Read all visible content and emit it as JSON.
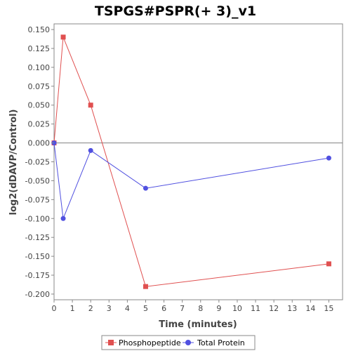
{
  "chart_data": {
    "type": "line",
    "title": "TSPGS#PSPR(+ 3)_v1",
    "xlabel": "Time (minutes)",
    "ylabel": "log2(dDAVP/Control)",
    "xlim": [
      0,
      15.75
    ],
    "ylim": [
      -0.2075,
      0.1575
    ],
    "xticks": [
      0,
      1,
      2,
      3,
      4,
      5,
      6,
      7,
      8,
      9,
      10,
      11,
      12,
      13,
      14,
      15
    ],
    "yticks": [
      0.15,
      0.125,
      0.1,
      0.075,
      0.05,
      0.025,
      0.0,
      -0.025,
      -0.05,
      -0.075,
      -0.1,
      -0.125,
      -0.15,
      -0.175,
      -0.2
    ],
    "ytick_labels": [
      "0.150",
      "0.125",
      "0.100",
      "0.075",
      "0.050",
      "0.025",
      "0.000",
      "-0.025",
      "-0.050",
      "-0.075",
      "-0.100",
      "-0.125",
      "-0.150",
      "-0.175",
      "-0.200"
    ],
    "zero_line": true,
    "grid": false,
    "legend_position": "bottom",
    "series": [
      {
        "name": "Phosphopeptide",
        "color": "#e05050",
        "marker": "square",
        "x": [
          0,
          0.5,
          2,
          5,
          15
        ],
        "y": [
          0.0,
          0.14,
          0.05,
          -0.19,
          -0.16
        ]
      },
      {
        "name": "Total Protein",
        "color": "#5050e0",
        "marker": "circle",
        "x": [
          0,
          0.5,
          2,
          5,
          15
        ],
        "y": [
          0.0,
          -0.1,
          -0.01,
          -0.06,
          -0.02
        ]
      }
    ]
  }
}
